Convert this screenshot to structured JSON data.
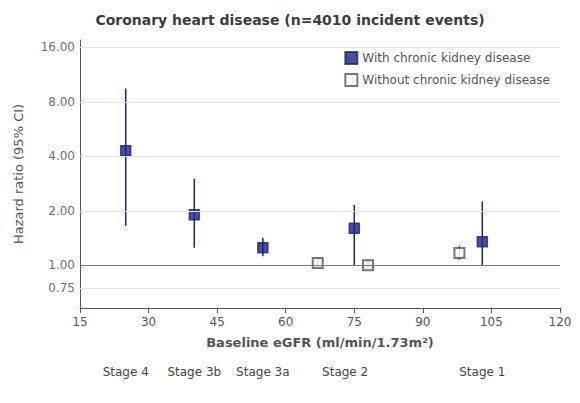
{
  "chart_data": {
    "type": "scatter",
    "title": "Coronary heart disease (n=4010 incident events)",
    "xlabel": "Baseline eGFR (ml/min/1.73m²)",
    "ylabel": "Hazard ratio (95% CI)",
    "log": "y",
    "grid": true,
    "legend": "upper right",
    "xlim": [
      15,
      120
    ],
    "xticks": [
      15,
      30,
      45,
      60,
      75,
      90,
      105,
      120
    ],
    "ylim": [
      0.58,
      17.6
    ],
    "yticks": [
      0.75,
      {
        "value": 1.0,
        "label": "1.00"
      },
      {
        "value": 2.0,
        "label": "2.00"
      },
      {
        "value": 4.0,
        "label": "4.00"
      },
      {
        "value": 8.0,
        "label": "8.00"
      },
      {
        "value": 16.0,
        "label": "16.00"
      }
    ],
    "ref_line": 1.0,
    "annotations": [
      "0"
    ],
    "stage_labels": [
      "Stage 4",
      "Stage 3b",
      "Stage 3a",
      "Stage 2",
      "Stage 1"
    ],
    "stage_x": [
      25,
      40,
      55,
      73,
      103
    ],
    "series": [
      {
        "name": "With chronic kidney disease",
        "color": "#1a237e",
        "marker": "square",
        "x": [
          25,
          40,
          55,
          75,
          103
        ],
        "values": [
          4.3,
          1.9,
          1.25,
          1.6,
          1.35
        ],
        "ci_low": [
          1.65,
          1.25,
          1.12,
          1.0,
          1.0
        ],
        "ci_high": [
          9.5,
          3.0,
          1.42,
          2.15,
          2.25
        ]
      },
      {
        "name": "Without chronic kidney disease",
        "color": "#555555",
        "marker": "open square",
        "x": [
          67,
          78,
          98
        ],
        "values": [
          1.03,
          1.0,
          1.17
        ],
        "ci_low": [
          0.97,
          0.95,
          1.07
        ],
        "ci_high": [
          1.11,
          1.07,
          1.28
        ]
      }
    ]
  }
}
